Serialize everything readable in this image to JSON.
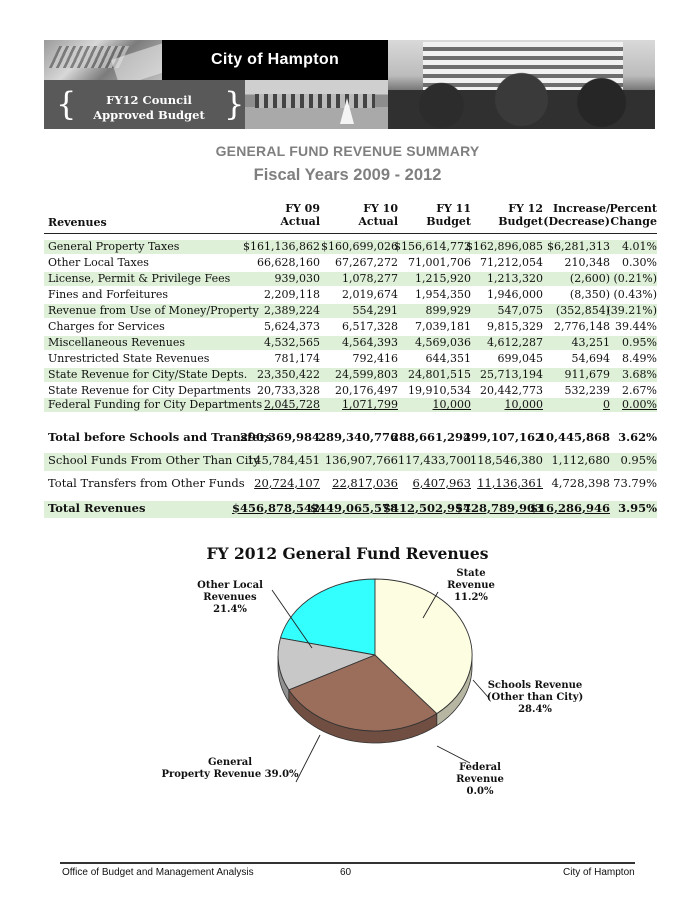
{
  "banner": {
    "title": "City of Hampton",
    "subtitle_line1": "FY12 Council",
    "subtitle_line2": "Approved Budget",
    "brace_left": "{",
    "brace_right": "}"
  },
  "heading": {
    "title": "GENERAL FUND REVENUE SUMMARY",
    "subtitle": "Fiscal Years 2009 - 2012"
  },
  "table": {
    "row_header": "Revenues",
    "columns": [
      {
        "line1": "FY 09",
        "line2": "Actual"
      },
      {
        "line1": "FY 10",
        "line2": "Actual"
      },
      {
        "line1": "FY 11",
        "line2": "Budget"
      },
      {
        "line1": "FY 12",
        "line2": "Budget"
      },
      {
        "line1": "Increase/",
        "line2": "(Decrease)"
      },
      {
        "line1": "Percent",
        "line2": "Change"
      }
    ],
    "rows": [
      {
        "label": "General Property Taxes",
        "fy09": "$161,136,862",
        "fy10": "$160,699,026",
        "fy11": "$156,614,772",
        "fy12": "$162,896,085",
        "change": "$6,281,313",
        "pct": "4.01%"
      },
      {
        "label": "Other Local Taxes",
        "fy09": "66,628,160",
        "fy10": "67,267,272",
        "fy11": "71,001,706",
        "fy12": "71,212,054",
        "change": "210,348",
        "pct": "0.30%"
      },
      {
        "label": "License, Permit & Privilege Fees",
        "fy09": "939,030",
        "fy10": "1,078,277",
        "fy11": "1,215,920",
        "fy12": "1,213,320",
        "change": "(2,600)",
        "pct": "(0.21%)"
      },
      {
        "label": "Fines and Forfeitures",
        "fy09": "2,209,118",
        "fy10": "2,019,674",
        "fy11": "1,954,350",
        "fy12": "1,946,000",
        "change": "(8,350)",
        "pct": "(0.43%)"
      },
      {
        "label": "Revenue from Use of Money/Property",
        "fy09": "2,389,224",
        "fy10": "554,291",
        "fy11": "899,929",
        "fy12": "547,075",
        "change": "(352,854)",
        "pct": "(39.21%)"
      },
      {
        "label": "Charges for Services",
        "fy09": "5,624,373",
        "fy10": "6,517,328",
        "fy11": "7,039,181",
        "fy12": "9,815,329",
        "change": "2,776,148",
        "pct": "39.44%"
      },
      {
        "label": "Miscellaneous Revenues",
        "fy09": "4,532,565",
        "fy10": "4,564,393",
        "fy11": "4,569,036",
        "fy12": "4,612,287",
        "change": "43,251",
        "pct": "0.95%"
      },
      {
        "label": "Unrestricted State Revenues",
        "fy09": "781,174",
        "fy10": "792,416",
        "fy11": "644,351",
        "fy12": "699,045",
        "change": "54,694",
        "pct": "8.49%"
      },
      {
        "label": "State Revenue for City/State Depts.",
        "fy09": "23,350,422",
        "fy10": "24,599,803",
        "fy11": "24,801,515",
        "fy12": "25,713,194",
        "change": "911,679",
        "pct": "3.68%"
      },
      {
        "label": "State Revenue for City Departments",
        "fy09": "20,733,328",
        "fy10": "20,176,497",
        "fy11": "19,910,534",
        "fy12": "20,442,773",
        "change": "532,239",
        "pct": "2.67%"
      },
      {
        "label": "Federal Funding for City Departments",
        "fy09": "2,045,728",
        "fy10": "1,071,799",
        "fy11": "10,000",
        "fy12": "10,000",
        "change": "0",
        "pct": "0.00%"
      }
    ],
    "total_before": {
      "label": "Total before Schools and Transfers",
      "fy09": "290,369,984",
      "fy10": "289,340,776",
      "fy11": "288,661,294",
      "fy12": "299,107,162",
      "change": "10,445,868",
      "pct": "3.62%"
    },
    "school_funds": {
      "label": "School Funds From Other Than City",
      "fy09": "145,784,451",
      "fy10": "136,907,766",
      "fy11": "117,433,700",
      "fy12": "118,546,380",
      "change": "1,112,680",
      "pct": "0.95%"
    },
    "transfers": {
      "label": "Total Transfers from Other Funds",
      "fy09": "20,724,107",
      "fy10": "22,817,036",
      "fy11": "6,407,963",
      "fy12": "11,136,361",
      "change": "4,728,398",
      "pct": "73.79%"
    },
    "total_revenues": {
      "label": "Total Revenues",
      "fy09": "$456,878,542",
      "fy10": "$449,065,578",
      "fy11": "$412,502,957",
      "fy12": "$428,789,903",
      "change": "$16,286,946",
      "pct": "3.95%"
    }
  },
  "chart_data": {
    "type": "pie",
    "title": "FY 2012  General Fund Revenues",
    "slices": [
      {
        "name": "Other Local Revenues",
        "label_lines": [
          "Other Local",
          "Revenues",
          "21.4%"
        ],
        "value": 21.4,
        "color": "#33ffff"
      },
      {
        "name": "State Revenue",
        "label_lines": [
          "State",
          "Revenue",
          "11.2%"
        ],
        "value": 11.2,
        "color": "#c8c8c8"
      },
      {
        "name": "Schools Revenue (Other than City)",
        "label_lines": [
          "Schools Revenue",
          "(Other than City)",
          "28.4%"
        ],
        "value": 28.4,
        "color": "#9b6e5c"
      },
      {
        "name": "Federal Revenue",
        "label_lines": [
          "Federal",
          "Revenue",
          "0.0%"
        ],
        "value": 0.0,
        "color": "#6b4a8a"
      },
      {
        "name": "General Property Revenue",
        "label_lines": [
          "General",
          "Property Revenue 39.0%"
        ],
        "value": 39.0,
        "color": "#fdfde2"
      }
    ]
  },
  "footer": {
    "left": "Office of Budget and Management Analysis",
    "page": "60",
    "right": "City of Hampton"
  }
}
